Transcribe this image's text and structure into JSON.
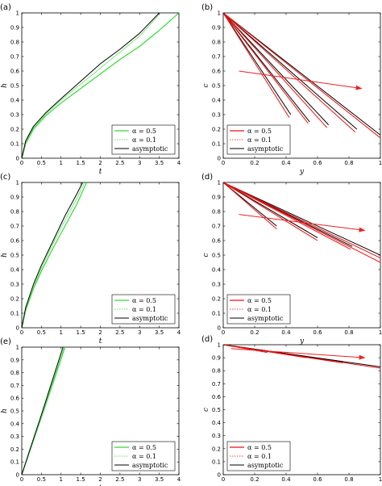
{
  "chart_data": [
    {
      "panel": "(a)",
      "type": "line",
      "xlabel": "t",
      "ylabel": "h",
      "xlim": [
        0,
        4
      ],
      "ylim": [
        0,
        1
      ],
      "xticks": [
        "0",
        "0.5",
        "1",
        "1.5",
        "2",
        "2.5",
        "3",
        "3.5",
        "4"
      ],
      "yticks": [
        "0",
        "0.1",
        "0.2",
        "0.3",
        "0.4",
        "0.5",
        "0.6",
        "0.7",
        "0.8",
        "0.9",
        "1"
      ],
      "legend": {
        "placement": "bottom-right",
        "entries": [
          {
            "label": "α = 0.5",
            "color": "#33dd33",
            "dash": "solid",
            "width": 1.3
          },
          {
            "label": "α = 0.1",
            "color": "#66e066",
            "dash": "dotted",
            "width": 0.9
          },
          {
            "label": "asymptotic",
            "color": "#000000",
            "dash": "solid",
            "width": 1.0
          }
        ]
      },
      "series": [
        {
          "color": "#33dd33",
          "width": 1.2,
          "x": [
            0,
            0.1,
            0.3,
            0.6,
            1.0,
            1.5,
            2.0,
            2.5,
            3.0,
            3.5,
            4.0
          ],
          "y": [
            0,
            0.1,
            0.2,
            0.29,
            0.38,
            0.48,
            0.58,
            0.68,
            0.77,
            0.88,
            1.0
          ]
        },
        {
          "color": "#66e066",
          "width": 0.8,
          "x": [
            0,
            0.1,
            0.3,
            0.6,
            1.0,
            1.5,
            2.0,
            2.5,
            3.0,
            3.5
          ],
          "y": [
            0,
            0.11,
            0.21,
            0.3,
            0.4,
            0.51,
            0.62,
            0.73,
            0.84,
            0.99
          ]
        },
        {
          "color": "#000000",
          "width": 1.0,
          "x": [
            0,
            0.1,
            0.3,
            0.6,
            1.0,
            1.5,
            2.0,
            2.5,
            3.0,
            3.5
          ],
          "y": [
            0,
            0.12,
            0.22,
            0.31,
            0.41,
            0.53,
            0.65,
            0.75,
            0.86,
            1.0
          ]
        }
      ]
    },
    {
      "panel": "(b)",
      "type": "line",
      "xlabel": "y",
      "ylabel": "c",
      "xlim": [
        0,
        1
      ],
      "ylim": [
        0,
        1
      ],
      "xticks": [
        "0",
        "0.2",
        "0.4",
        "0.6",
        "0.8",
        "1"
      ],
      "yticks": [
        "0",
        "0.1",
        "0.2",
        "0.3",
        "0.4",
        "0.5",
        "0.6",
        "0.7",
        "0.8",
        "0.9",
        "1"
      ],
      "legend": {
        "placement": "bottom-left",
        "entries": [
          {
            "label": "α = 0.5",
            "color": "#ee1111",
            "dash": "solid",
            "width": 1.3
          },
          {
            "label": "α = 0.1",
            "color": "#ee4444",
            "dash": "dotted",
            "width": 0.9
          },
          {
            "label": "asymptotic",
            "color": "#000000",
            "dash": "solid",
            "width": 1.0
          }
        ]
      },
      "arrow": {
        "color": "#ee2222",
        "from": [
          0.1,
          0.6
        ],
        "to": [
          0.88,
          0.48
        ]
      },
      "series": [
        {
          "color": "#000000",
          "width": 1.0,
          "x": [
            0,
            0.43
          ],
          "y": [
            1,
            0.3
          ]
        },
        {
          "color": "#ee1111",
          "width": 1.0,
          "x": [
            0,
            0.42
          ],
          "y": [
            1,
            0.28
          ]
        },
        {
          "color": "#000000",
          "width": 1.0,
          "x": [
            0,
            0.55
          ],
          "y": [
            1,
            0.25
          ]
        },
        {
          "color": "#ee1111",
          "width": 1.0,
          "x": [
            0,
            0.54
          ],
          "y": [
            1,
            0.24
          ]
        },
        {
          "color": "#000000",
          "width": 1.0,
          "x": [
            0,
            0.67
          ],
          "y": [
            1,
            0.23
          ]
        },
        {
          "color": "#ee1111",
          "width": 1.0,
          "x": [
            0,
            0.66
          ],
          "y": [
            1,
            0.21
          ]
        },
        {
          "color": "#000000",
          "width": 1.0,
          "x": [
            0,
            0.85
          ],
          "y": [
            1,
            0.2
          ]
        },
        {
          "color": "#ee1111",
          "width": 1.0,
          "x": [
            0,
            0.84
          ],
          "y": [
            1,
            0.18
          ]
        },
        {
          "color": "#000000",
          "width": 1.0,
          "x": [
            0,
            1.0
          ],
          "y": [
            1,
            0.16
          ]
        },
        {
          "color": "#ee1111",
          "width": 1.0,
          "x": [
            0,
            1.0
          ],
          "y": [
            1,
            0.14
          ]
        }
      ]
    },
    {
      "panel": "(c)",
      "type": "line",
      "xlabel": "t",
      "ylabel": "h",
      "xlim": [
        0,
        4
      ],
      "ylim": [
        0,
        1
      ],
      "xticks": [
        "0",
        "0.5",
        "1",
        "1.5",
        "2",
        "2.5",
        "3",
        "3.5",
        "4"
      ],
      "yticks": [
        "0",
        "0.1",
        "0.2",
        "0.3",
        "0.4",
        "0.5",
        "0.6",
        "0.7",
        "0.8",
        "0.9",
        "1"
      ],
      "legend": {
        "placement": "bottom-right",
        "entries": [
          {
            "label": "α = 0.5",
            "color": "#33dd33",
            "dash": "solid",
            "width": 1.3
          },
          {
            "label": "α = 0.1",
            "color": "#66e066",
            "dash": "dotted",
            "width": 0.9
          },
          {
            "label": "asymptotic",
            "color": "#000000",
            "dash": "solid",
            "width": 1.0
          }
        ]
      },
      "series": [
        {
          "color": "#33dd33",
          "width": 1.2,
          "x": [
            0,
            0.1,
            0.3,
            0.5,
            0.8,
            1.1,
            1.4,
            1.65
          ],
          "y": [
            0,
            0.12,
            0.27,
            0.39,
            0.55,
            0.7,
            0.85,
            1.0
          ]
        },
        {
          "color": "#66e066",
          "width": 0.8,
          "x": [
            0,
            0.1,
            0.3,
            0.5,
            0.8,
            1.1,
            1.4,
            1.6
          ],
          "y": [
            0,
            0.13,
            0.28,
            0.41,
            0.58,
            0.74,
            0.89,
            1.0
          ]
        },
        {
          "color": "#000000",
          "width": 1.0,
          "x": [
            0,
            0.1,
            0.3,
            0.5,
            0.8,
            1.1,
            1.4,
            1.55
          ],
          "y": [
            0,
            0.14,
            0.3,
            0.43,
            0.6,
            0.77,
            0.92,
            1.0
          ]
        }
      ]
    },
    {
      "panel": "(d)",
      "type": "line",
      "xlabel": "y",
      "ylabel": "c",
      "xlim": [
        0,
        1
      ],
      "ylim": [
        0,
        1
      ],
      "xticks": [
        "0",
        "0.2",
        "0.4",
        "0.6",
        "0.8",
        "1"
      ],
      "yticks": [
        "0",
        "0.1",
        "0.2",
        "0.3",
        "0.4",
        "0.5",
        "0.6",
        "0.7",
        "0.8",
        "0.9",
        "1"
      ],
      "legend": {
        "placement": "bottom-left",
        "entries": [
          {
            "label": "α = 0.5",
            "color": "#ee1111",
            "dash": "solid",
            "width": 1.3
          },
          {
            "label": "α = 0.1",
            "color": "#ee4444",
            "dash": "dotted",
            "width": 0.9
          },
          {
            "label": "asymptotic",
            "color": "#000000",
            "dash": "solid",
            "width": 1.0
          }
        ]
      },
      "arrow": {
        "color": "#ee2222",
        "from": [
          0.1,
          0.78
        ],
        "to": [
          0.9,
          0.67
        ]
      },
      "series": [
        {
          "color": "#000000",
          "width": 1.0,
          "x": [
            0,
            0.34
          ],
          "y": [
            1,
            0.7
          ]
        },
        {
          "color": "#ee1111",
          "width": 1.0,
          "x": [
            0,
            0.34
          ],
          "y": [
            1,
            0.68
          ]
        },
        {
          "color": "#000000",
          "width": 1.0,
          "x": [
            0,
            0.6
          ],
          "y": [
            1,
            0.62
          ]
        },
        {
          "color": "#ee1111",
          "width": 1.0,
          "x": [
            0,
            0.6
          ],
          "y": [
            1,
            0.6
          ]
        },
        {
          "color": "#000000",
          "width": 1.0,
          "x": [
            0,
            0.82
          ],
          "y": [
            1,
            0.56
          ]
        },
        {
          "color": "#ee1111",
          "width": 1.0,
          "x": [
            0,
            0.81
          ],
          "y": [
            1,
            0.54
          ]
        },
        {
          "color": "#000000",
          "width": 1.0,
          "x": [
            0,
            1.0
          ],
          "y": [
            1,
            0.5
          ]
        },
        {
          "color": "#ee1111",
          "width": 1.0,
          "x": [
            0,
            1.0
          ],
          "y": [
            1,
            0.48
          ]
        },
        {
          "color": "#ee1111",
          "width": 1.0,
          "x": [
            0,
            1.0
          ],
          "y": [
            1,
            0.45
          ]
        }
      ]
    },
    {
      "panel": "(e)",
      "type": "line",
      "xlabel": "t",
      "ylabel": "h",
      "xlim": [
        0,
        4
      ],
      "ylim": [
        0,
        1
      ],
      "xticks": [
        "0",
        "0.5",
        "1",
        "1.5",
        "2",
        "2.5",
        "3",
        "3.5",
        "4"
      ],
      "yticks": [
        "0",
        "0.1",
        "0.2",
        "0.3",
        "0.4",
        "0.5",
        "0.6",
        "0.7",
        "0.8",
        "0.9",
        "1"
      ],
      "legend": {
        "placement": "bottom-right",
        "entries": [
          {
            "label": "α = 0.5",
            "color": "#33dd33",
            "dash": "solid",
            "width": 1.3
          },
          {
            "label": "α = 0.1",
            "color": "#66e066",
            "dash": "dotted",
            "width": 0.9
          },
          {
            "label": "asymptotic",
            "color": "#000000",
            "dash": "solid",
            "width": 1.0
          }
        ]
      },
      "series": [
        {
          "color": "#33dd33",
          "width": 1.2,
          "x": [
            0,
            0.2,
            0.5,
            0.8,
            1.1
          ],
          "y": [
            0,
            0.18,
            0.45,
            0.72,
            1.0
          ]
        },
        {
          "color": "#66e066",
          "width": 0.8,
          "x": [
            0,
            0.2,
            0.5,
            0.8,
            1.08
          ],
          "y": [
            0,
            0.19,
            0.46,
            0.74,
            1.0
          ]
        },
        {
          "color": "#000000",
          "width": 1.0,
          "x": [
            0,
            0.2,
            0.5,
            0.8,
            1.05
          ],
          "y": [
            0,
            0.19,
            0.47,
            0.76,
            1.0
          ]
        }
      ]
    },
    {
      "panel": "(d)",
      "type": "line",
      "xlabel": "y",
      "ylabel": "c",
      "xlim": [
        0,
        1
      ],
      "ylim": [
        0,
        1
      ],
      "xticks": [
        "0",
        "0.2",
        "0.4",
        "0.6",
        "0.8",
        "1"
      ],
      "yticks": [
        "0",
        "0.1",
        "0.2",
        "0.3",
        "0.4",
        "0.5",
        "0.6",
        "0.7",
        "0.8",
        "0.9",
        "1"
      ],
      "legend": {
        "placement": "bottom-left",
        "entries": [
          {
            "label": "α = 0.5",
            "color": "#ee1111",
            "dash": "solid",
            "width": 1.3
          },
          {
            "label": "α = 0.1",
            "color": "#ee4444",
            "dash": "dotted",
            "width": 0.9
          },
          {
            "label": "asymptotic",
            "color": "#000000",
            "dash": "solid",
            "width": 1.0
          }
        ]
      },
      "arrow": {
        "color": "#ee2222",
        "from": [
          0.05,
          0.97
        ],
        "to": [
          0.9,
          0.9
        ]
      },
      "series": [
        {
          "color": "#000000",
          "width": 1.0,
          "x": [
            0,
            0.28
          ],
          "y": [
            1,
            0.95
          ]
        },
        {
          "color": "#ee1111",
          "width": 1.0,
          "x": [
            0,
            0.28
          ],
          "y": [
            1,
            0.94
          ]
        },
        {
          "color": "#000000",
          "width": 1.0,
          "x": [
            0,
            0.53
          ],
          "y": [
            1,
            0.91
          ]
        },
        {
          "color": "#ee1111",
          "width": 1.0,
          "x": [
            0,
            0.53
          ],
          "y": [
            1,
            0.9
          ]
        },
        {
          "color": "#000000",
          "width": 1.0,
          "x": [
            0,
            0.76
          ],
          "y": [
            1,
            0.87
          ]
        },
        {
          "color": "#ee1111",
          "width": 1.0,
          "x": [
            0,
            0.76
          ],
          "y": [
            1,
            0.86
          ]
        },
        {
          "color": "#000000",
          "width": 1.0,
          "x": [
            0,
            1.0
          ],
          "y": [
            1,
            0.83
          ]
        },
        {
          "color": "#ee1111",
          "width": 1.0,
          "x": [
            0,
            1.0
          ],
          "y": [
            1,
            0.82
          ]
        }
      ]
    }
  ]
}
